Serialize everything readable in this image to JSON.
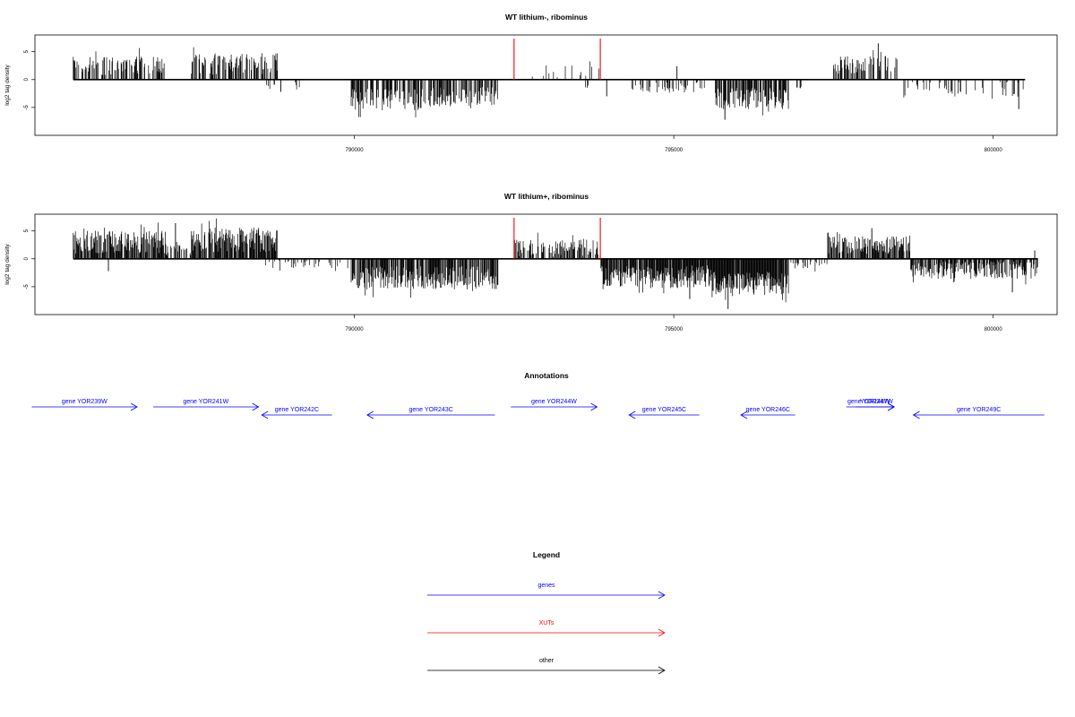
{
  "chart_data": [
    {
      "type": "bar",
      "title": "WT lithium-, ribominus",
      "ylabel": "log2 tag density",
      "xlim": [
        785000,
        801000
      ],
      "ylim": [
        -10,
        8
      ],
      "yticks": [
        -5,
        0,
        5
      ],
      "xticks": [
        790000,
        795000,
        800000
      ],
      "xtick_labels": [
        "790000",
        "795000",
        "800000"
      ],
      "highlight_x": [
        792500,
        793850
      ],
      "highlight_color": "#ff0000",
      "bar_color": "#000000",
      "segments": [
        {
          "x0": 785600,
          "x1": 787050,
          "sign": 1,
          "mean": 2.6,
          "var": 1.1,
          "density": 0.55
        },
        {
          "x0": 787450,
          "x1": 788800,
          "sign": 1,
          "mean": 2.8,
          "var": 1.2,
          "density": 0.6
        },
        {
          "x0": 788600,
          "x1": 789150,
          "sign": -1,
          "mean": 0.9,
          "var": 0.6,
          "density": 0.1
        },
        {
          "x0": 789950,
          "x1": 791200,
          "sign": -1,
          "mean": 3.6,
          "var": 1.2,
          "density": 0.65
        },
        {
          "x0": 791200,
          "x1": 792250,
          "sign": -1,
          "mean": 3.1,
          "var": 1.1,
          "density": 0.55
        },
        {
          "x0": 792600,
          "x1": 793100,
          "sign": 1,
          "mean": 1.8,
          "var": 0.8,
          "density": 0.08
        },
        {
          "x0": 793100,
          "x1": 793850,
          "sign": 1,
          "mean": 1.4,
          "var": 0.9,
          "density": 0.15
        },
        {
          "x0": 793500,
          "x1": 793850,
          "sign": -1,
          "mean": 1.4,
          "var": 1.0,
          "density": 0.05
        },
        {
          "x0": 794300,
          "x1": 795500,
          "sign": -1,
          "mean": 1.4,
          "var": 0.6,
          "density": 0.3
        },
        {
          "x0": 795650,
          "x1": 796800,
          "sign": -1,
          "mean": 3.4,
          "var": 1.2,
          "density": 0.75
        },
        {
          "x0": 796900,
          "x1": 797000,
          "sign": -1,
          "mean": 1.3,
          "var": 0.3,
          "density": 0.2
        },
        {
          "x0": 797500,
          "x1": 798500,
          "sign": 1,
          "mean": 2.6,
          "var": 1.0,
          "density": 0.55
        },
        {
          "x0": 798500,
          "x1": 800500,
          "sign": -1,
          "mean": 1.8,
          "var": 0.9,
          "density": 0.15
        }
      ],
      "spikes": [
        {
          "x": 798200,
          "y": 6.5
        },
        {
          "x": 795050,
          "y": 2.4
        },
        {
          "x": 788850,
          "y": -2.2
        },
        {
          "x": 800400,
          "y": -5.3
        },
        {
          "x": 793950,
          "y": -3.0
        },
        {
          "x": 795800,
          "y": -7.2
        }
      ]
    },
    {
      "type": "bar",
      "title": "WT lithium+, ribominus",
      "ylabel": "log2 tag density",
      "xlim": [
        785000,
        801000
      ],
      "ylim": [
        -10,
        8
      ],
      "yticks": [
        -5,
        0,
        5
      ],
      "xticks": [
        790000,
        795000,
        800000
      ],
      "xtick_labels": [
        "790000",
        "795000",
        "800000"
      ],
      "highlight_x": [
        792500,
        793850
      ],
      "highlight_color": "#ff0000",
      "bar_color": "#000000",
      "segments": [
        {
          "x0": 785600,
          "x1": 787050,
          "sign": 1,
          "mean": 3.0,
          "var": 1.3,
          "density": 0.8
        },
        {
          "x0": 787450,
          "x1": 788800,
          "sign": 1,
          "mean": 3.4,
          "var": 1.4,
          "density": 0.85
        },
        {
          "x0": 787050,
          "x1": 787450,
          "sign": 1,
          "mean": 1.4,
          "var": 0.6,
          "density": 0.4
        },
        {
          "x0": 788600,
          "x1": 789950,
          "sign": -1,
          "mean": 0.9,
          "var": 0.5,
          "density": 0.25
        },
        {
          "x0": 789950,
          "x1": 792250,
          "sign": -1,
          "mean": 3.4,
          "var": 1.3,
          "density": 0.8
        },
        {
          "x0": 792500,
          "x1": 793850,
          "sign": 1,
          "mean": 2.0,
          "var": 1.0,
          "density": 0.55
        },
        {
          "x0": 793850,
          "x1": 795600,
          "sign": -1,
          "mean": 3.2,
          "var": 1.3,
          "density": 0.9
        },
        {
          "x0": 795600,
          "x1": 796800,
          "sign": -1,
          "mean": 4.4,
          "var": 1.3,
          "density": 0.95
        },
        {
          "x0": 796800,
          "x1": 797400,
          "sign": -1,
          "mean": 0.9,
          "var": 0.5,
          "density": 0.3
        },
        {
          "x0": 797400,
          "x1": 798700,
          "sign": 1,
          "mean": 2.5,
          "var": 1.0,
          "density": 0.75
        },
        {
          "x0": 798700,
          "x1": 800700,
          "sign": -1,
          "mean": 2.0,
          "var": 1.0,
          "density": 0.7
        }
      ],
      "spikes": [
        {
          "x": 787200,
          "y": 6.4
        },
        {
          "x": 786150,
          "y": -2.2
        },
        {
          "x": 798100,
          "y": 5.5
        },
        {
          "x": 795250,
          "y": -7.2
        },
        {
          "x": 795850,
          "y": -9.0
        },
        {
          "x": 800300,
          "y": -6.0
        },
        {
          "x": 800650,
          "y": 1.5
        }
      ]
    }
  ],
  "annotations": {
    "title": "Annotations",
    "genes": [
      {
        "label": "gene YOR239W",
        "x0": 784950,
        "x1": 786600,
        "strand": "+",
        "row": 0
      },
      {
        "label": "gene YOR241W",
        "x0": 786850,
        "x1": 788500,
        "strand": "+",
        "row": 0
      },
      {
        "label": "gene YOR242C",
        "x0": 788550,
        "x1": 789650,
        "strand": "-",
        "row": 1
      },
      {
        "label": "gene YOR243C",
        "x0": 790200,
        "x1": 792200,
        "strand": "-",
        "row": 1
      },
      {
        "label": "gene YOR244W",
        "x0": 792450,
        "x1": 793800,
        "strand": "+",
        "row": 0
      },
      {
        "label": "gene YOR245C",
        "x0": 794300,
        "x1": 795400,
        "strand": "-",
        "row": 1
      },
      {
        "label": "gene YOR246C",
        "x0": 796050,
        "x1": 796900,
        "strand": "-",
        "row": 1
      },
      {
        "label": "gene YOR247W",
        "x0": 797700,
        "x1": 798450,
        "strand": "+",
        "row": 0
      },
      {
        "label": "YOR248W",
        "x0": 797850,
        "x1": 798450,
        "strand": "+",
        "row": 0
      },
      {
        "label": "gene YOR249C",
        "x0": 798750,
        "x1": 800800,
        "strand": "-",
        "row": 1
      }
    ]
  },
  "legend": {
    "title": "Legend",
    "items": [
      {
        "label": "genes",
        "color": "#0000ff"
      },
      {
        "label": "XUTs",
        "color": "#ff0000"
      },
      {
        "label": "other",
        "color": "#000000"
      }
    ]
  }
}
